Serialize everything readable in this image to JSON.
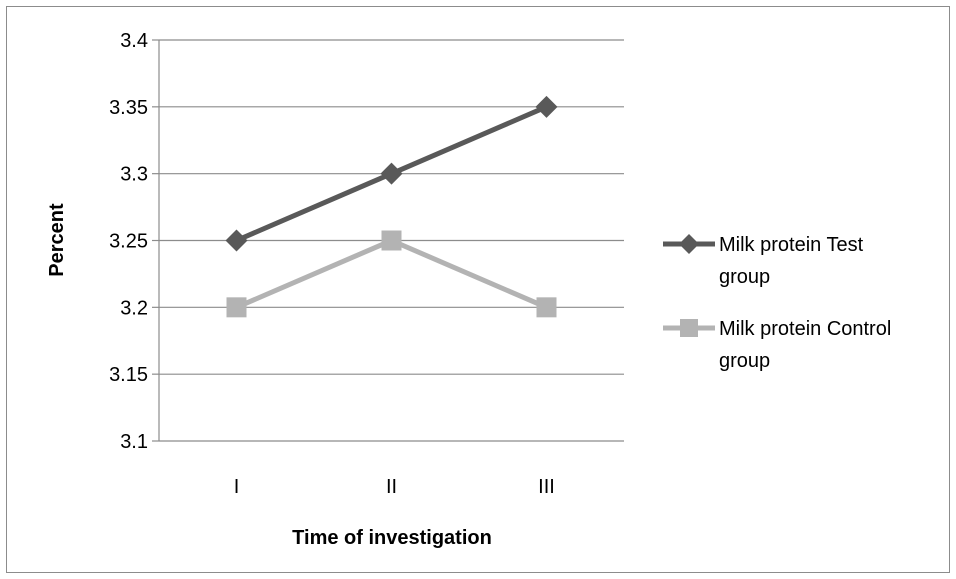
{
  "chart_data": {
    "type": "line",
    "title": "",
    "xlabel": "Time of investigation",
    "ylabel": "Percent",
    "categories": [
      "I",
      "II",
      "III"
    ],
    "ylim": [
      3.1,
      3.4
    ],
    "yticks": [
      3.1,
      3.15,
      3.2,
      3.25,
      3.3,
      3.35,
      3.4
    ],
    "ytick_labels": [
      "3.1",
      "3.15",
      "3.2",
      "3.25",
      "3.3",
      "3.35",
      "3.4"
    ],
    "grid": true,
    "legend_position": "right",
    "series": [
      {
        "name_line1": "Milk protein Test",
        "name_line2": "group",
        "values": [
          3.25,
          3.3,
          3.35
        ],
        "color": "#595959",
        "marker": "diamond"
      },
      {
        "name_line1": "Milk protein Control",
        "name_line2": "group",
        "values": [
          3.2,
          3.25,
          3.2
        ],
        "color": "#b3b3b3",
        "marker": "square"
      }
    ]
  }
}
